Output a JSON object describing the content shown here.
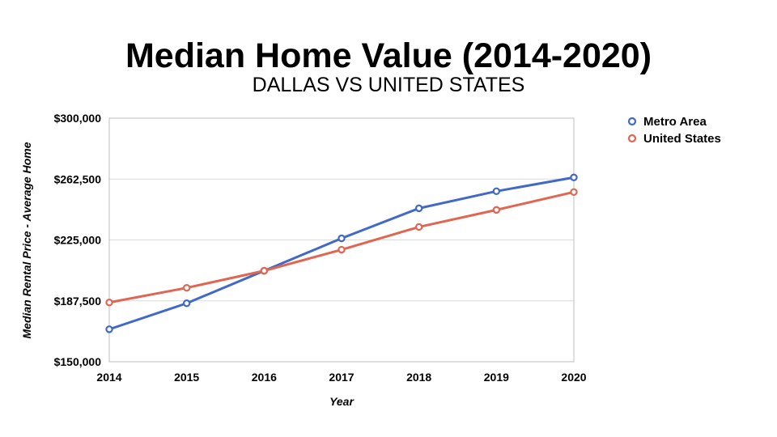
{
  "chart_data": {
    "type": "line",
    "title": "Median Home Value (2014-2020)",
    "subtitle": "DALLAS VS UNITED STATES",
    "xlabel": "Year",
    "ylabel": "Median Rental Price - Average Home",
    "categories": [
      "2014",
      "2015",
      "2016",
      "2017",
      "2018",
      "2019",
      "2020"
    ],
    "ylim": [
      150000,
      300000
    ],
    "yticks": [
      150000,
      187500,
      225000,
      262500,
      300000
    ],
    "ytick_labels": [
      "$150,000",
      "$187,500",
      "$225,000",
      "$262,500",
      "$300,000"
    ],
    "grid": true,
    "legend_position": "right",
    "series": [
      {
        "name": "Metro Area",
        "color": "#4169c8",
        "values": [
          170000,
          186000,
          206000,
          226000,
          244500,
          255000,
          263500
        ]
      },
      {
        "name": "United States",
        "color": "#e06652",
        "values": [
          186500,
          195500,
          206000,
          219000,
          233000,
          243500,
          254500
        ]
      }
    ]
  }
}
